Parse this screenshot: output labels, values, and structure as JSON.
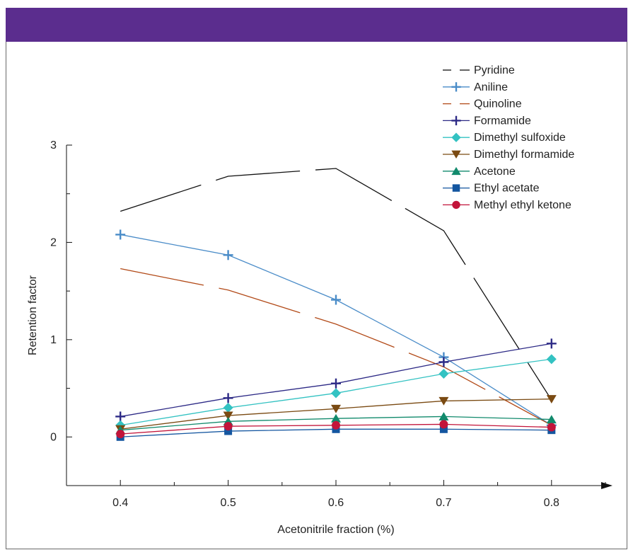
{
  "chart_data": {
    "type": "line",
    "xlabel": "Acetonitrile fraction (%)",
    "ylabel": "Retention factor",
    "xlim": [
      0.35,
      0.85
    ],
    "ylim": [
      -0.5,
      3.0
    ],
    "x_ticks": [
      0.4,
      0.5,
      0.6,
      0.7,
      0.8
    ],
    "y_ticks": [
      0,
      1,
      2,
      3
    ],
    "legend_position": "top-right",
    "x": [
      0.4,
      0.5,
      0.6,
      0.7,
      0.8
    ],
    "series": [
      {
        "name": "Pyridine",
        "values": [
          2.32,
          2.68,
          2.76,
          2.12,
          0.38
        ],
        "color": "#111111",
        "marker": "none",
        "dash": "long"
      },
      {
        "name": "Aniline",
        "values": [
          2.08,
          1.87,
          1.41,
          0.82,
          0.12
        ],
        "color": "#4a8cc8",
        "marker": "plus",
        "dash": "solid"
      },
      {
        "name": "Quinoline",
        "values": [
          1.73,
          1.51,
          1.16,
          0.72,
          0.12
        ],
        "color": "#b24a18",
        "marker": "none",
        "dash": "long"
      },
      {
        "name": "Formamide",
        "values": [
          0.21,
          0.4,
          0.55,
          0.77,
          0.96
        ],
        "color": "#2d2a86",
        "marker": "plus",
        "dash": "solid"
      },
      {
        "name": "Dimethyl sulfoxide",
        "values": [
          0.12,
          0.3,
          0.45,
          0.65,
          0.8
        ],
        "color": "#33c2c2",
        "marker": "diamond",
        "dash": "solid"
      },
      {
        "name": "Dimethyl formamide",
        "values": [
          0.08,
          0.22,
          0.29,
          0.37,
          0.39
        ],
        "color": "#7a4a12",
        "marker": "triangle-down",
        "dash": "solid"
      },
      {
        "name": "Acetone",
        "values": [
          0.07,
          0.16,
          0.19,
          0.21,
          0.18
        ],
        "color": "#118a6c",
        "marker": "triangle-up",
        "dash": "solid"
      },
      {
        "name": "Ethyl acetate",
        "values": [
          0.0,
          0.06,
          0.08,
          0.08,
          0.07
        ],
        "color": "#1456a0",
        "marker": "square",
        "dash": "solid"
      },
      {
        "name": "Methyl ethyl ketone",
        "values": [
          0.03,
          0.11,
          0.12,
          0.13,
          0.1
        ],
        "color": "#c2143a",
        "marker": "circle",
        "dash": "solid"
      }
    ]
  }
}
